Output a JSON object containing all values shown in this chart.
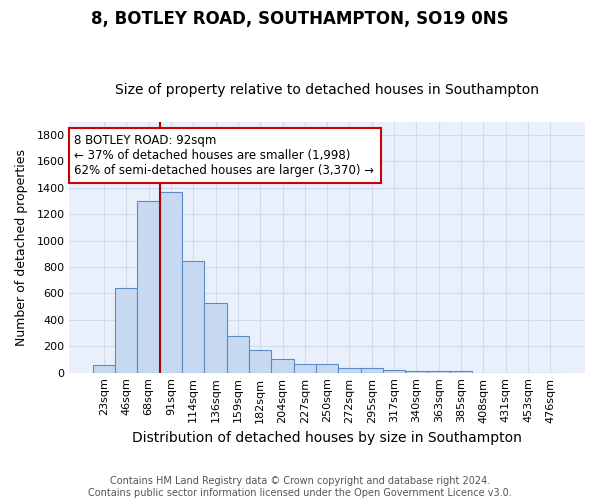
{
  "title": "8, BOTLEY ROAD, SOUTHAMPTON, SO19 0NS",
  "subtitle": "Size of property relative to detached houses in Southampton",
  "xlabel": "Distribution of detached houses by size in Southampton",
  "ylabel": "Number of detached properties",
  "categories": [
    "23sqm",
    "46sqm",
    "68sqm",
    "91sqm",
    "114sqm",
    "136sqm",
    "159sqm",
    "182sqm",
    "204sqm",
    "227sqm",
    "250sqm",
    "272sqm",
    "295sqm",
    "317sqm",
    "340sqm",
    "363sqm",
    "385sqm",
    "408sqm",
    "431sqm",
    "453sqm",
    "476sqm"
  ],
  "values": [
    55,
    645,
    1300,
    1370,
    845,
    525,
    275,
    175,
    105,
    65,
    65,
    38,
    35,
    22,
    10,
    10,
    13,
    0,
    0,
    0,
    0
  ],
  "bar_color": "#c6d9f1",
  "bar_edge_color": "#5b8bc9",
  "vline_x_index": 3,
  "vline_color": "#aa0000",
  "annotation_line1": "8 BOTLEY ROAD: 92sqm",
  "annotation_line2": "← 37% of detached houses are smaller (1,998)",
  "annotation_line3": "62% of semi-detached houses are larger (3,370) →",
  "annotation_box_color": "white",
  "annotation_box_edge": "#cc0000",
  "ylim": [
    0,
    1900
  ],
  "yticks": [
    0,
    200,
    400,
    600,
    800,
    1000,
    1200,
    1400,
    1600,
    1800
  ],
  "background_color": "#eaf0fb",
  "grid_color": "#d0daea",
  "footer": "Contains HM Land Registry data © Crown copyright and database right 2024.\nContains public sector information licensed under the Open Government Licence v3.0.",
  "title_fontsize": 12,
  "subtitle_fontsize": 10,
  "xlabel_fontsize": 10,
  "ylabel_fontsize": 9,
  "tick_fontsize": 8,
  "annotation_fontsize": 8.5,
  "footer_fontsize": 7
}
